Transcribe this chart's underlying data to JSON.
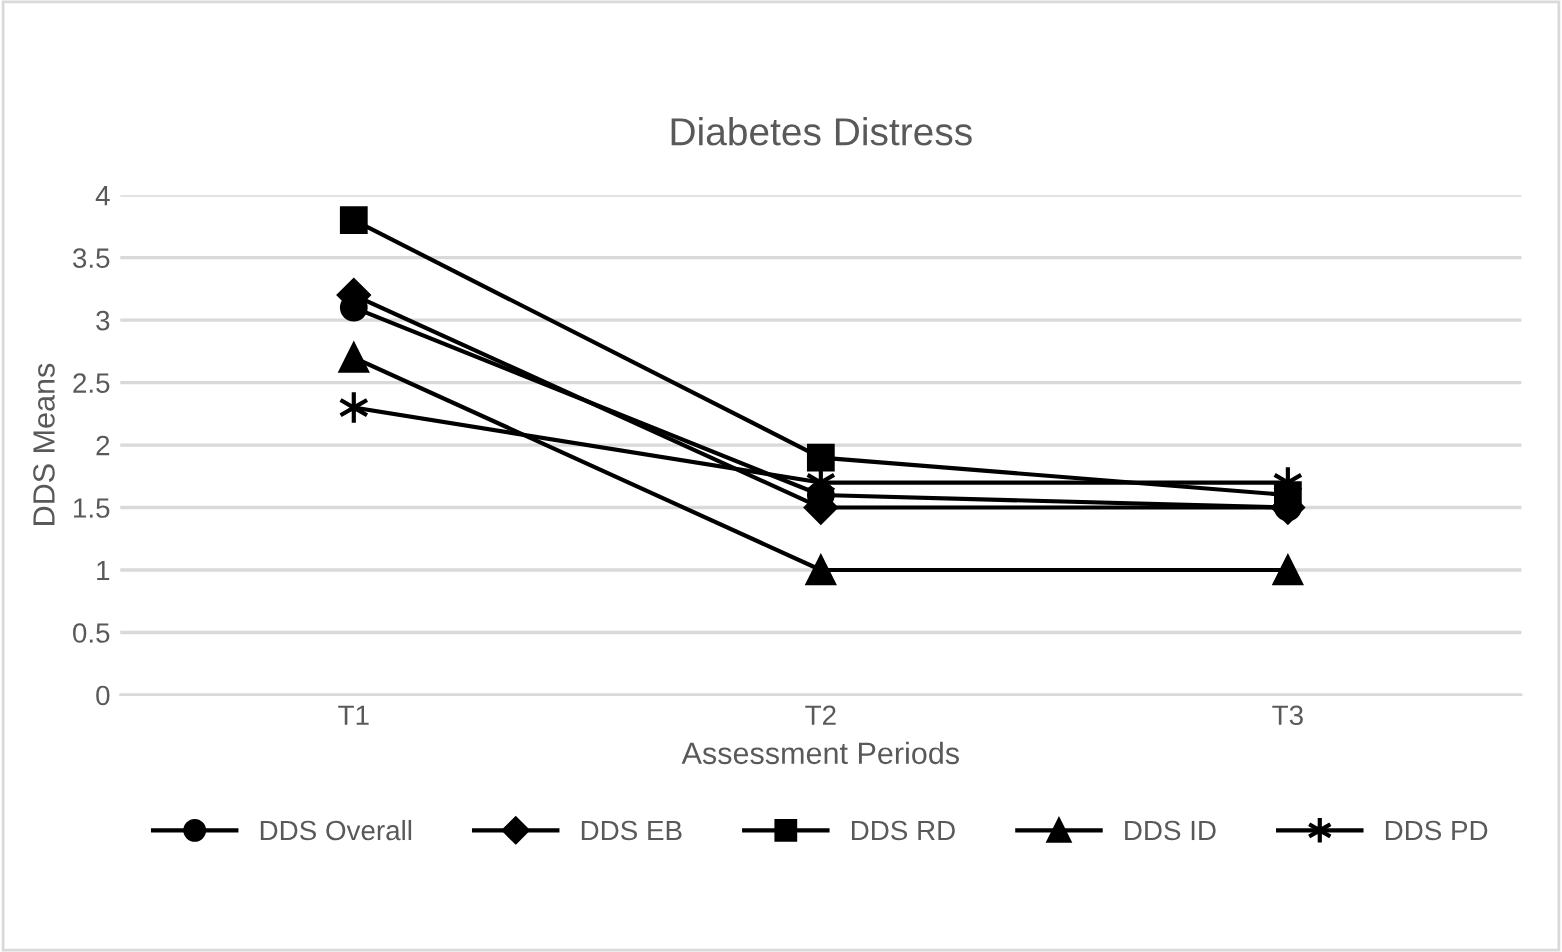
{
  "chart_data": {
    "type": "line",
    "title": "Diabetes Distress",
    "xlabel": "Assessment Periods",
    "ylabel": "DDS Means",
    "categories": [
      "T1",
      "T2",
      "T3"
    ],
    "series": [
      {
        "name": "DDS Overall",
        "color": "#000000",
        "marker": "circle",
        "values": [
          3.1,
          1.6,
          1.5
        ]
      },
      {
        "name": "DDS EB",
        "color": "#000000",
        "marker": "diamond",
        "values": [
          3.2,
          1.5,
          1.5
        ]
      },
      {
        "name": "DDS RD",
        "color": "#000000",
        "marker": "square",
        "values": [
          3.8,
          1.9,
          1.6
        ]
      },
      {
        "name": "DDS ID",
        "color": "#000000",
        "marker": "triangle",
        "values": [
          2.7,
          1,
          1
        ]
      },
      {
        "name": "DDS PD",
        "color": "#000000",
        "marker": "cross",
        "values": [
          2.3,
          1.7,
          1.7
        ]
      }
    ],
    "ylim": [
      0,
      4
    ],
    "yticks": [
      0,
      0.5,
      1,
      1.5,
      2,
      2.5,
      3,
      3.5,
      4
    ],
    "grid": "y",
    "legend": "bottom",
    "line_style": "solid"
  }
}
